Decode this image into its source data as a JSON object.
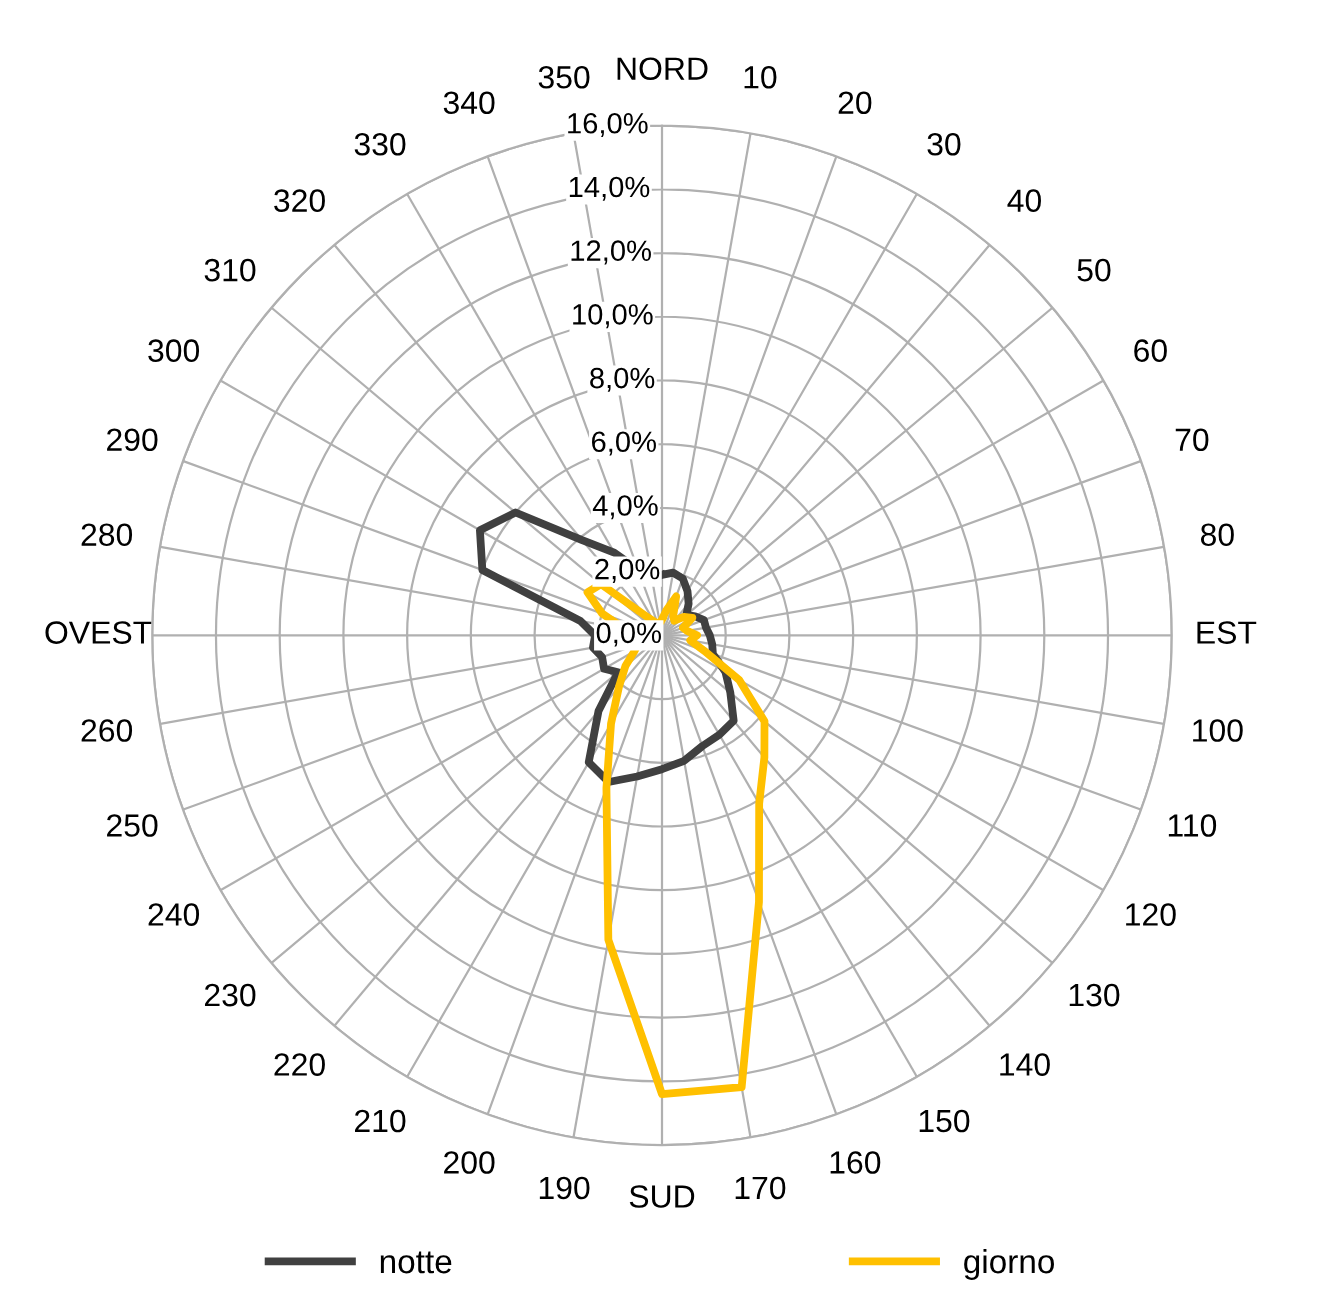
{
  "chart_data": {
    "type": "radar",
    "categories": [
      "NORD",
      "10",
      "20",
      "30",
      "40",
      "50",
      "60",
      "70",
      "80",
      "EST",
      "100",
      "110",
      "120",
      "130",
      "140",
      "150",
      "160",
      "170",
      "SUD",
      "190",
      "200",
      "210",
      "220",
      "230",
      "240",
      "250",
      "260",
      "OVEST",
      "280",
      "290",
      "300",
      "310",
      "320",
      "330",
      "340",
      "350"
    ],
    "series": [
      {
        "name": "notte",
        "color": "#404040",
        "values": [
          1.9,
          2.0,
          1.9,
          1.6,
          1.3,
          1.0,
          1.2,
          1.4,
          1.4,
          1.5,
          1.6,
          1.7,
          2.3,
          2.8,
          3.5,
          3.6,
          3.7,
          4.0,
          4.2,
          4.5,
          4.9,
          4.6,
          3.1,
          1.8,
          2.1,
          2.0,
          2.2,
          2.1,
          2.6,
          6.0,
          6.6,
          6.0,
          3.9,
          3.0,
          2.2,
          1.8
        ]
      },
      {
        "name": "giorno",
        "color": "#ffc000",
        "values": [
          0.5,
          0.8,
          1.3,
          0.7,
          0.6,
          0.9,
          1.1,
          0.7,
          0.8,
          1.1,
          0.9,
          1.4,
          2.8,
          4.2,
          5.0,
          6.1,
          8.9,
          14.4,
          14.4,
          9.7,
          5.1,
          3.2,
          2.1,
          1.5,
          1.0,
          0.8,
          0.7,
          0.8,
          1.2,
          2.0,
          2.7,
          2.5,
          0.8,
          0.5,
          0.4,
          0.4
        ]
      }
    ],
    "ylim": [
      0,
      16
    ],
    "yticks": [
      {
        "value": 0,
        "label": "0,0%"
      },
      {
        "value": 2,
        "label": "2,0%"
      },
      {
        "value": 4,
        "label": "4,0%"
      },
      {
        "value": 6,
        "label": "6,0%"
      },
      {
        "value": 8,
        "label": "8,0%"
      },
      {
        "value": 10,
        "label": "10,0%"
      },
      {
        "value": 12,
        "label": "12,0%"
      },
      {
        "value": 14,
        "label": "14,0%"
      },
      {
        "value": 16,
        "label": "16,0%"
      }
    ],
    "grid": true,
    "legend": "bottom",
    "marker": "none",
    "line_style": "solid"
  }
}
